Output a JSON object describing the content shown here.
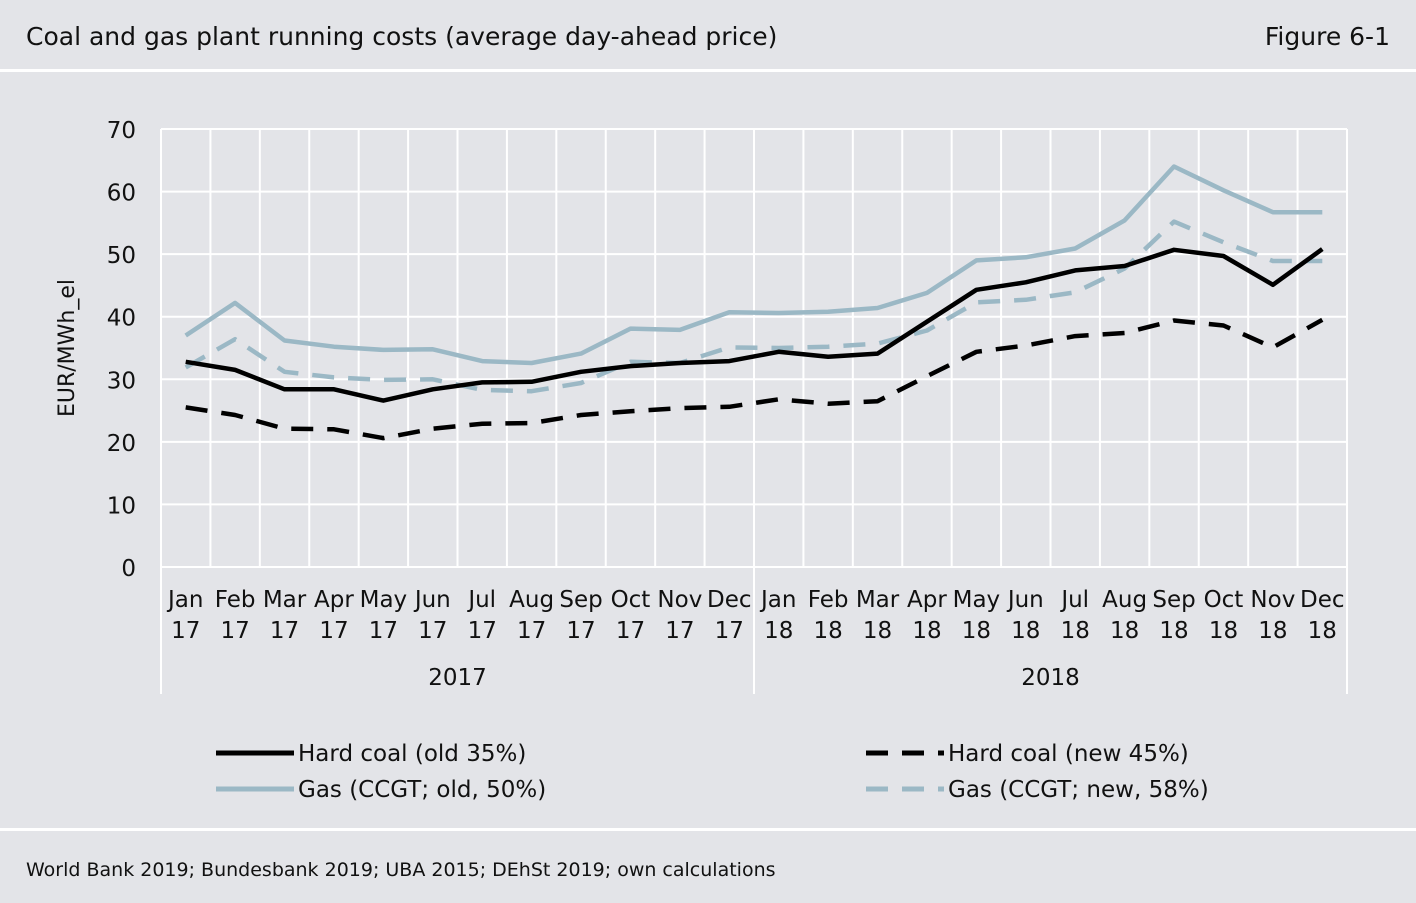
{
  "header": {
    "title": "Coal and gas plant running costs (average day-ahead price)",
    "figure_label": "Figure 6-1"
  },
  "footer": {
    "source": "World Bank 2019; Bundesbank 2019; UBA 2015; DEhSt 2019; own calculations"
  },
  "colors": {
    "background": "#e3e4e8",
    "grid": "#ffffff",
    "coal": "#000000",
    "gas": "#9bb8c5"
  },
  "chart_data": {
    "type": "line",
    "title": "",
    "xlabel": "",
    "ylabel": "EUR/MWh_el",
    "ylim": [
      0,
      70
    ],
    "yticks": [
      "0",
      "10",
      "20",
      "30",
      "40",
      "50",
      "60",
      "70"
    ],
    "grid": true,
    "legend_position": "bottom",
    "categories": [
      {
        "month": "Jan",
        "year": "17"
      },
      {
        "month": "Feb",
        "year": "17"
      },
      {
        "month": "Mar",
        "year": "17"
      },
      {
        "month": "Apr",
        "year": "17"
      },
      {
        "month": "May",
        "year": "17"
      },
      {
        "month": "Jun",
        "year": "17"
      },
      {
        "month": "Jul",
        "year": "17"
      },
      {
        "month": "Aug",
        "year": "17"
      },
      {
        "month": "Sep",
        "year": "17"
      },
      {
        "month": "Oct",
        "year": "17"
      },
      {
        "month": "Nov",
        "year": "17"
      },
      {
        "month": "Dec",
        "year": "17"
      },
      {
        "month": "Jan",
        "year": "18"
      },
      {
        "month": "Feb",
        "year": "18"
      },
      {
        "month": "Mar",
        "year": "18"
      },
      {
        "month": "Apr",
        "year": "18"
      },
      {
        "month": "May",
        "year": "18"
      },
      {
        "month": "Jun",
        "year": "18"
      },
      {
        "month": "Jul",
        "year": "18"
      },
      {
        "month": "Aug",
        "year": "18"
      },
      {
        "month": "Sep",
        "year": "18"
      },
      {
        "month": "Oct",
        "year": "18"
      },
      {
        "month": "Nov",
        "year": "18"
      },
      {
        "month": "Dec",
        "year": "18"
      }
    ],
    "year_groups": [
      {
        "label": "2017",
        "from": 0,
        "to": 11
      },
      {
        "label": "2018",
        "from": 12,
        "to": 23
      }
    ],
    "series": [
      {
        "name": "Hard coal (old 35%)",
        "color": "#000000",
        "style": "solid",
        "values": [
          32.8,
          31.5,
          28.4,
          28.4,
          26.6,
          28.4,
          29.5,
          29.6,
          31.2,
          32.1,
          32.6,
          32.9,
          34.4,
          33.6,
          34.1,
          39.2,
          44.3,
          45.5,
          47.4,
          48.1,
          50.7,
          49.7,
          45.1,
          50.8
        ]
      },
      {
        "name": "Hard coal (new 45%)",
        "color": "#000000",
        "style": "dashed",
        "values": [
          25.5,
          24.3,
          22.1,
          22.0,
          20.6,
          22.1,
          22.9,
          23.0,
          24.3,
          24.9,
          25.4,
          25.6,
          26.8,
          26.1,
          26.5,
          30.5,
          34.4,
          35.4,
          36.9,
          37.4,
          39.4,
          38.6,
          35.1,
          39.5
        ]
      },
      {
        "name": "Gas (CCGT; old, 50%)",
        "color": "#9bb8c5",
        "style": "solid",
        "values": [
          37.0,
          42.2,
          36.2,
          35.2,
          34.7,
          34.8,
          32.9,
          32.6,
          34.1,
          38.1,
          37.9,
          40.7,
          40.6,
          40.8,
          41.4,
          43.8,
          49.0,
          49.5,
          50.9,
          55.4,
          64.0,
          60.2,
          56.7,
          56.7
        ]
      },
      {
        "name": "Gas (CCGT; new, 58%)",
        "color": "#9bb8c5",
        "style": "dashed",
        "values": [
          31.9,
          36.4,
          31.2,
          30.3,
          29.9,
          30.0,
          28.3,
          28.1,
          29.4,
          32.8,
          32.6,
          35.1,
          35.0,
          35.2,
          35.7,
          37.8,
          42.3,
          42.7,
          43.9,
          47.7,
          55.2,
          51.9,
          48.9,
          48.9
        ]
      }
    ]
  }
}
